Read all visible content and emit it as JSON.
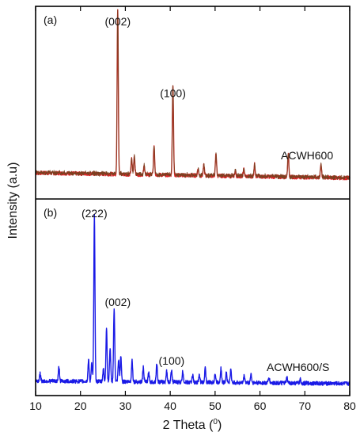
{
  "chart_data": [
    {
      "type": "line",
      "panel_label": "(a)",
      "sample_label": "ACWH600",
      "xlim": [
        10,
        80
      ],
      "ylim": [
        0,
        1
      ],
      "colors": [
        "#e0242a",
        "#7a4020"
      ],
      "peak_labels": [
        {
          "text": "(002)",
          "x": 28.3,
          "y": 1.0
        },
        {
          "text": "(100)",
          "x": 40.6,
          "y": 0.58
        }
      ],
      "baseline": 0.12,
      "peaks": [
        {
          "x": 28.3,
          "h": 0.97
        },
        {
          "x": 40.6,
          "h": 0.53
        },
        {
          "x": 31.4,
          "h": 0.09
        },
        {
          "x": 32.0,
          "h": 0.11
        },
        {
          "x": 34.2,
          "h": 0.05
        },
        {
          "x": 36.4,
          "h": 0.17
        },
        {
          "x": 46.2,
          "h": 0.04
        },
        {
          "x": 47.5,
          "h": 0.06
        },
        {
          "x": 50.2,
          "h": 0.13
        },
        {
          "x": 54.5,
          "h": 0.03
        },
        {
          "x": 56.4,
          "h": 0.04
        },
        {
          "x": 58.8,
          "h": 0.07
        },
        {
          "x": 66.3,
          "h": 0.14
        },
        {
          "x": 73.6,
          "h": 0.08
        }
      ]
    },
    {
      "type": "line",
      "panel_label": "(b)",
      "sample_label": "ACWH600/S",
      "xlim": [
        10,
        80
      ],
      "ylim": [
        0,
        1
      ],
      "colors": [
        "#1a1ae6"
      ],
      "peak_labels": [
        {
          "text": "(222)",
          "x": 23.1,
          "y": 1.0
        },
        {
          "text": "(002)",
          "x": 28.3,
          "y": 0.5
        },
        {
          "text": "(100)",
          "x": 40.3,
          "y": 0.17
        }
      ],
      "baseline": 0.06,
      "peaks": [
        {
          "x": 11.0,
          "h": 0.04
        },
        {
          "x": 15.2,
          "h": 0.08
        },
        {
          "x": 21.8,
          "h": 0.12
        },
        {
          "x": 22.5,
          "h": 0.1
        },
        {
          "x": 23.1,
          "h": 0.93
        },
        {
          "x": 25.1,
          "h": 0.07
        },
        {
          "x": 25.8,
          "h": 0.3
        },
        {
          "x": 26.6,
          "h": 0.19
        },
        {
          "x": 27.5,
          "h": 0.41
        },
        {
          "x": 28.5,
          "h": 0.12
        },
        {
          "x": 29.0,
          "h": 0.14
        },
        {
          "x": 31.5,
          "h": 0.12
        },
        {
          "x": 34.0,
          "h": 0.08
        },
        {
          "x": 35.2,
          "h": 0.05
        },
        {
          "x": 37.0,
          "h": 0.1
        },
        {
          "x": 39.2,
          "h": 0.06
        },
        {
          "x": 40.3,
          "h": 0.07
        },
        {
          "x": 42.8,
          "h": 0.06
        },
        {
          "x": 45.0,
          "h": 0.04
        },
        {
          "x": 46.5,
          "h": 0.04
        },
        {
          "x": 47.8,
          "h": 0.08
        },
        {
          "x": 50.0,
          "h": 0.05
        },
        {
          "x": 51.3,
          "h": 0.08
        },
        {
          "x": 52.5,
          "h": 0.06
        },
        {
          "x": 53.5,
          "h": 0.07
        },
        {
          "x": 56.5,
          "h": 0.04
        },
        {
          "x": 58.0,
          "h": 0.05
        },
        {
          "x": 62.0,
          "h": 0.03
        },
        {
          "x": 66.0,
          "h": 0.03
        },
        {
          "x": 69.0,
          "h": 0.02
        }
      ]
    }
  ],
  "axes": {
    "xlabel": "2 Theta (",
    "xlabel_sup": "0",
    "xlabel_end": ")",
    "ylabel": "Intensity (a.u)",
    "xticks": [
      "10",
      "20",
      "30",
      "40",
      "50",
      "60",
      "70",
      "80"
    ]
  }
}
